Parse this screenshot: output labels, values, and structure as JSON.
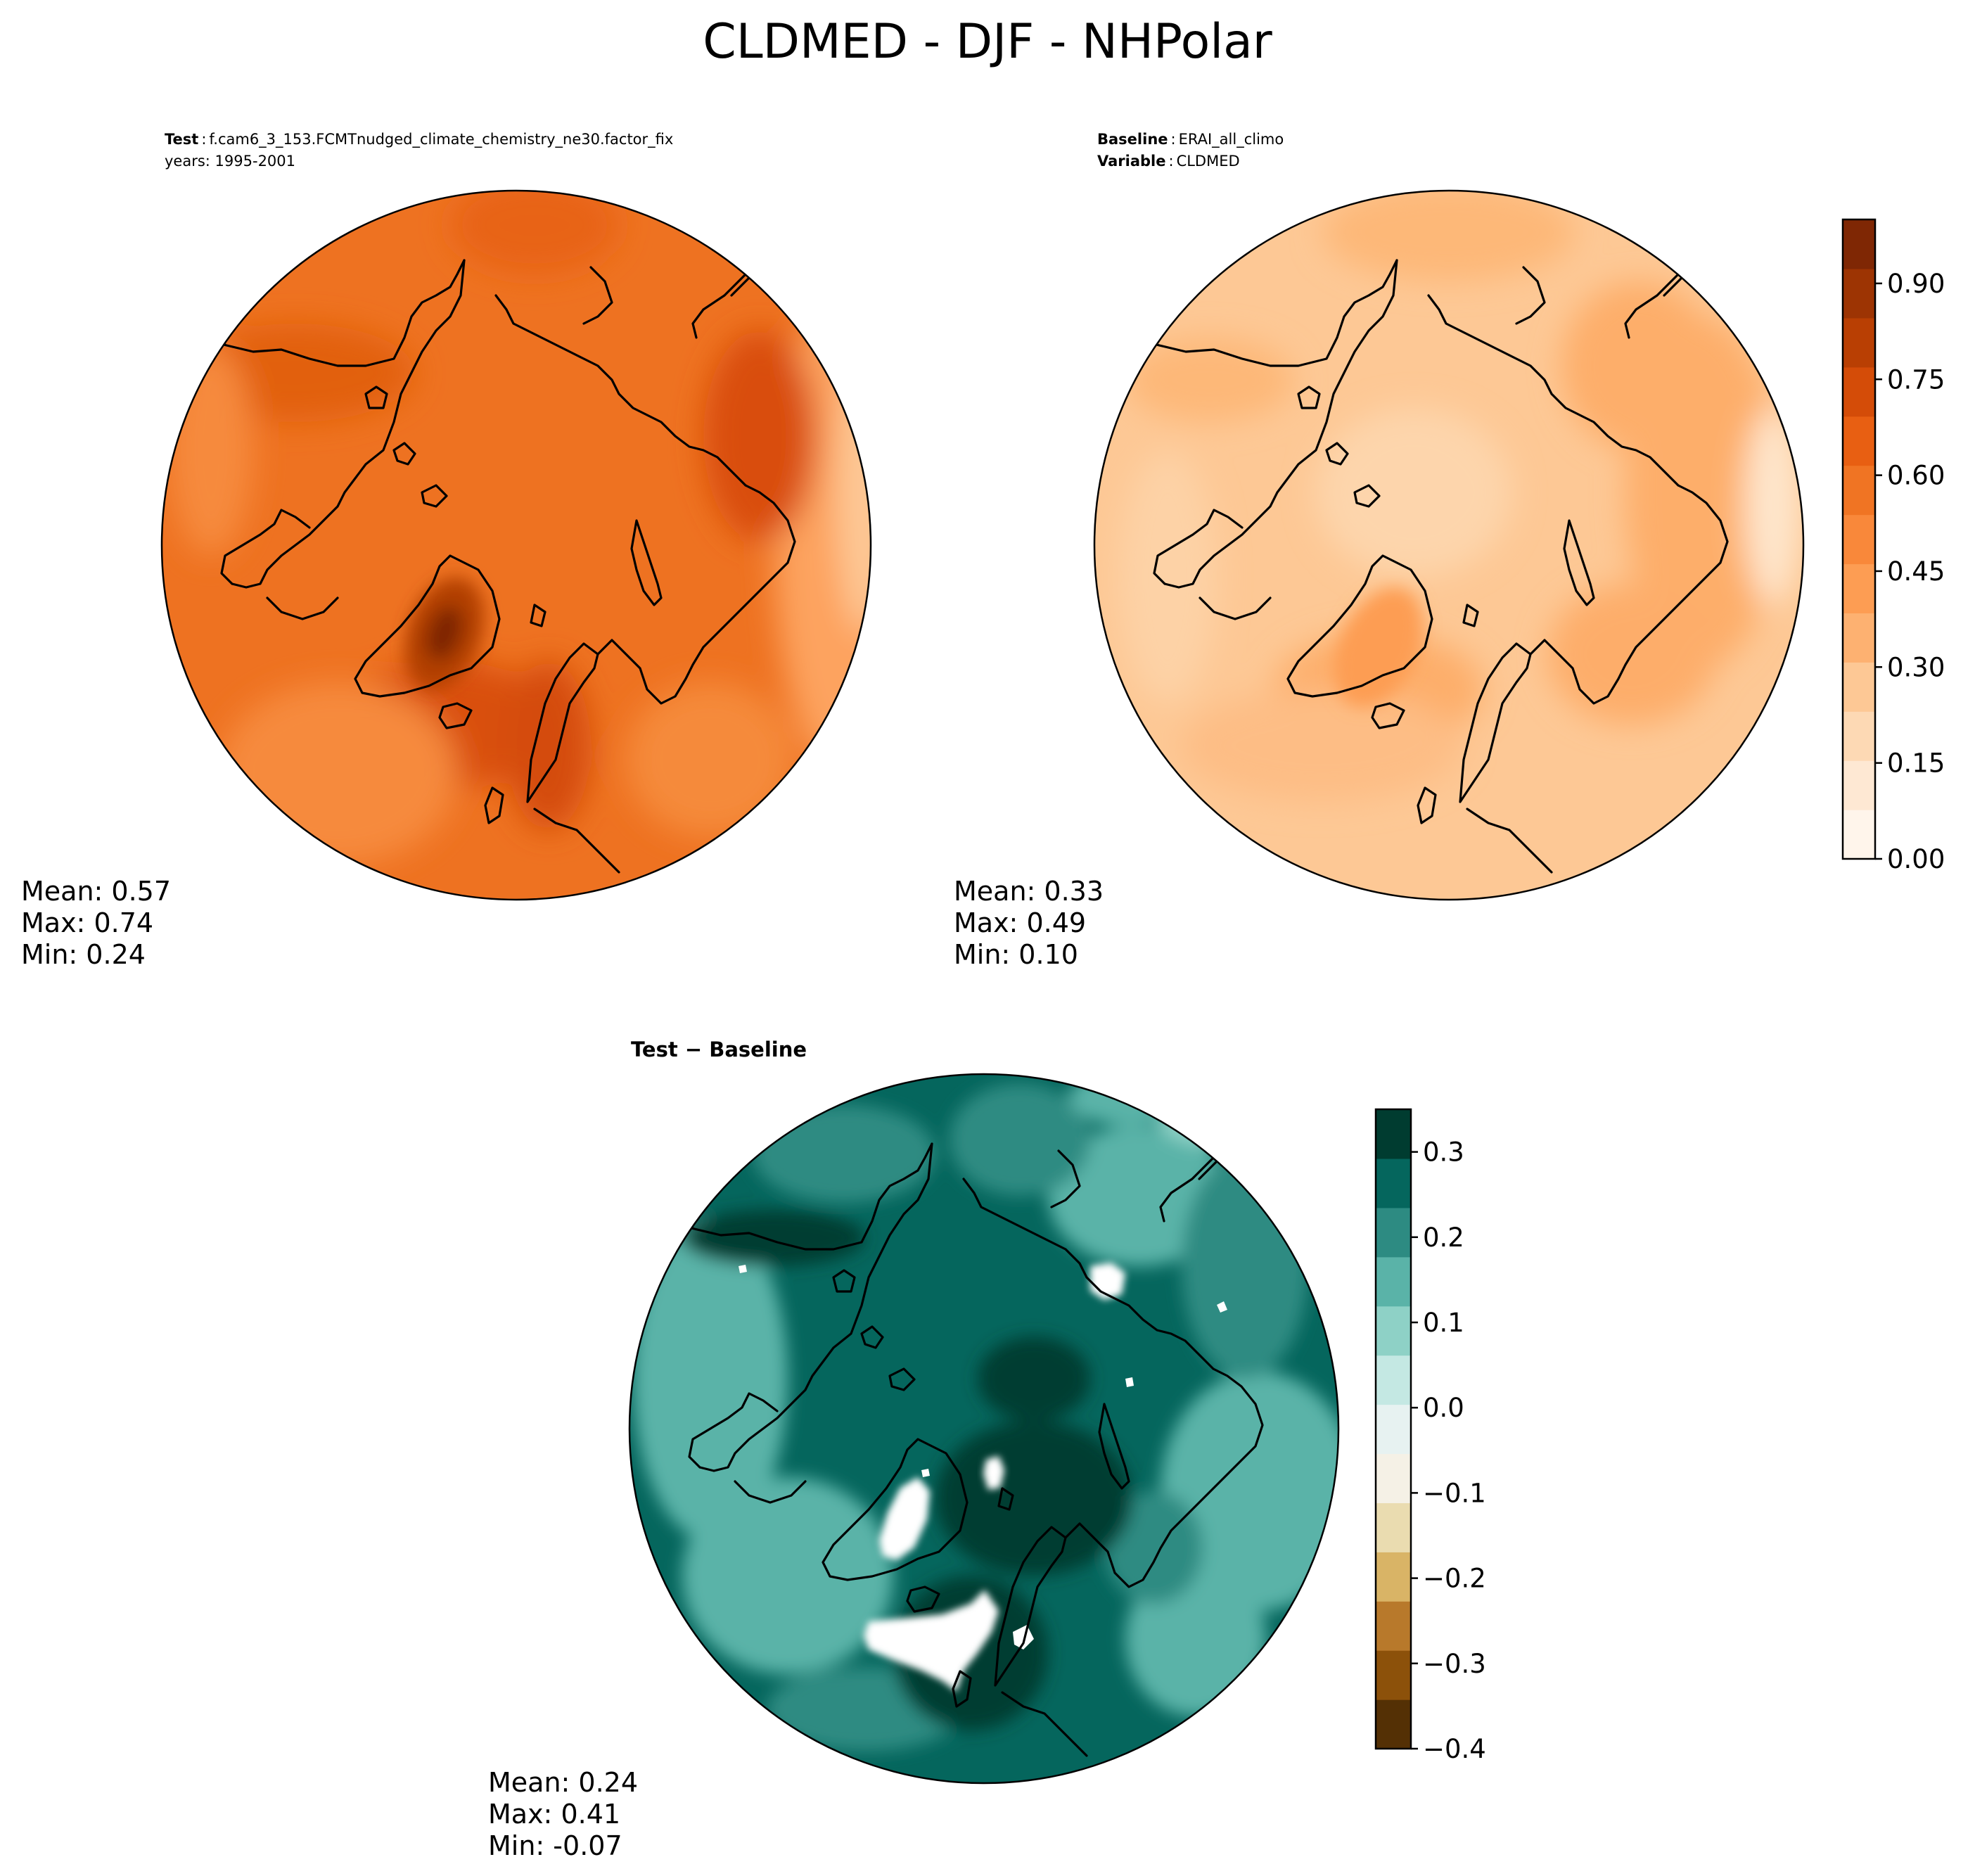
{
  "title": "CLDMED - DJF - NHPolar",
  "test_panel": {
    "header": {
      "label": "Test",
      "case": "f.cam6_3_153.FCMTnudged_climate_chemistry_ne30.factor_fix",
      "years": "years: 1995-2001"
    },
    "stats": {
      "mean": "Mean:  0.57",
      "max": "Max:  0.74",
      "min": "Min:  0.24"
    }
  },
  "baseline_panel": {
    "header": {
      "baseline_label": "Baseline",
      "baseline_value": "ERAI_all_climo",
      "variable_label": "Variable",
      "variable_value": "CLDMED"
    },
    "stats": {
      "mean": "Mean:  0.33",
      "max": "Max:  0.49",
      "min": "Min:  0.10"
    }
  },
  "diff_panel": {
    "header": {
      "label": "Test − Baseline"
    },
    "stats": {
      "mean": "Mean:  0.24",
      "max": "Max:  0.41",
      "min": "Min: -0.07"
    }
  },
  "colors": {
    "oranges": [
      "#fff5eb",
      "#fee8d3",
      "#fdd9b4",
      "#fdc895",
      "#fdb171",
      "#fd9d53",
      "#f9883a",
      "#f07423",
      "#e85f12",
      "#d44c08",
      "#b93f03",
      "#9d3403",
      "#7f2704"
    ],
    "brbg": [
      "#543005",
      "#8c510a",
      "#b8792b",
      "#d9b466",
      "#eadcb0",
      "#f5f1e6",
      "#e7f2f1",
      "#c4e8e3",
      "#8ed1c6",
      "#5ab3a8",
      "#2d8b82",
      "#05665d",
      "#003c30"
    ],
    "coast": "#000000"
  },
  "chart_data": [
    {
      "type": "heatmap",
      "name": "test",
      "projection": "north-polar-stereographic",
      "mean": 0.57,
      "max": 0.74,
      "min": 0.24
    },
    {
      "type": "heatmap",
      "name": "baseline",
      "projection": "north-polar-stereographic",
      "mean": 0.33,
      "max": 0.49,
      "min": 0.1,
      "colorbar": {
        "cmap": "Oranges",
        "range": [
          0.0,
          1.0
        ],
        "ticks": [
          0.0,
          0.15,
          0.3,
          0.45,
          0.6,
          0.75,
          0.9
        ],
        "tick_labels": [
          "0.00",
          "0.15",
          "0.30",
          "0.45",
          "0.60",
          "0.75",
          "0.90"
        ]
      }
    },
    {
      "type": "heatmap",
      "name": "difference",
      "projection": "north-polar-stereographic",
      "mean": 0.24,
      "max": 0.41,
      "min": -0.07,
      "colorbar": {
        "cmap": "BrBG",
        "range": [
          -0.4,
          0.35
        ],
        "ticks": [
          -0.4,
          -0.3,
          -0.2,
          -0.1,
          0.0,
          0.1,
          0.2,
          0.3
        ],
        "tick_labels": [
          "−0.4",
          "−0.3",
          "−0.2",
          "−0.1",
          "0.0",
          "0.1",
          "0.2",
          "0.3"
        ]
      }
    }
  ]
}
